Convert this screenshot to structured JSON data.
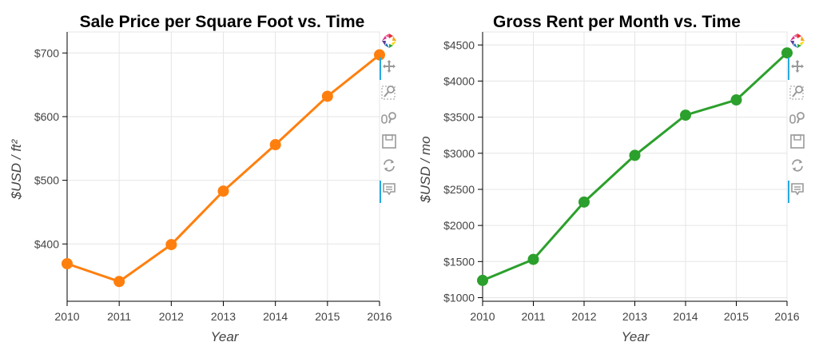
{
  "chart_data": [
    {
      "type": "line",
      "title": "Sale Price per Square Foot vs. Time",
      "xlabel": "Year",
      "ylabel": "$USD / ft²",
      "x": [
        2010,
        2011,
        2012,
        2013,
        2014,
        2015,
        2016
      ],
      "series": [
        {
          "values": [
            369,
            341,
            399,
            483,
            556,
            632,
            697
          ],
          "color": "#ff7f0e"
        }
      ],
      "xlim": [
        2010,
        2016
      ],
      "ylim": [
        310,
        733
      ],
      "x_ticks": [
        2010,
        2011,
        2012,
        2013,
        2014,
        2015,
        2016
      ],
      "y_ticks": [
        400,
        500,
        600,
        700
      ],
      "y_tick_labels": [
        "$400",
        "$500",
        "$600",
        "$700"
      ],
      "grid": true
    },
    {
      "type": "line",
      "title": "Gross Rent per Month vs. Time",
      "xlabel": "Year",
      "ylabel": "$USD / mo",
      "x": [
        2010,
        2011,
        2012,
        2013,
        2014,
        2015,
        2016
      ],
      "series": [
        {
          "values": [
            1239,
            1530,
            2324,
            2971,
            3528,
            3739,
            4390
          ],
          "color": "#2ca02c"
        }
      ],
      "xlim": [
        2010,
        2016
      ],
      "ylim": [
        950,
        4680
      ],
      "x_ticks": [
        2010,
        2011,
        2012,
        2013,
        2014,
        2015,
        2016
      ],
      "y_ticks": [
        1000,
        1500,
        2000,
        2500,
        3000,
        3500,
        4000,
        4500
      ],
      "y_tick_labels": [
        "$1000",
        "$1500",
        "$2000",
        "$2500",
        "$3000",
        "$3500",
        "$4000",
        "$4500"
      ],
      "grid": true
    }
  ],
  "toolbar": {
    "tools": [
      {
        "name": "bokeh-logo-icon",
        "interactable": true
      },
      {
        "name": "pan-tool-icon",
        "interactable": true,
        "active": true
      },
      {
        "name": "box-zoom-tool-icon",
        "interactable": true
      },
      {
        "name": "wheel-zoom-tool-icon",
        "interactable": true
      },
      {
        "name": "save-tool-icon",
        "interactable": true
      },
      {
        "name": "reset-tool-icon",
        "interactable": true
      },
      {
        "name": "hover-tool-icon",
        "interactable": true,
        "active": true
      }
    ]
  }
}
